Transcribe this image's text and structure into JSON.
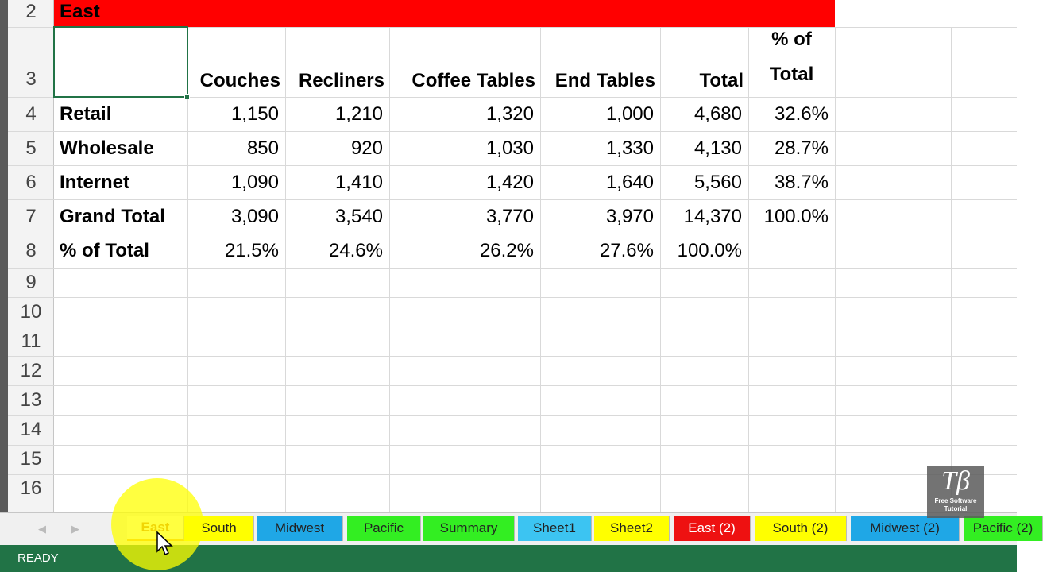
{
  "sheet": {
    "title_row": {
      "row": "2",
      "text": "East"
    },
    "header_row": {
      "row": "3",
      "cells": [
        "Couches",
        "Recliners",
        "Coffee Tables",
        "End Tables",
        "Total",
        "% of Total"
      ]
    },
    "rows": [
      {
        "row": "4",
        "cells": [
          "Retail",
          "1,150",
          "1,210",
          "1,320",
          "1,000",
          "4,680",
          "32.6%"
        ]
      },
      {
        "row": "5",
        "cells": [
          "Wholesale",
          "850",
          "920",
          "1,030",
          "1,330",
          "4,130",
          "28.7%"
        ]
      },
      {
        "row": "6",
        "cells": [
          "Internet",
          "1,090",
          "1,410",
          "1,420",
          "1,640",
          "5,560",
          "38.7%"
        ]
      },
      {
        "row": "7",
        "cells": [
          "Grand Total",
          "3,090",
          "3,540",
          "3,770",
          "3,970",
          "14,370",
          "100.0%"
        ]
      },
      {
        "row": "8",
        "cells": [
          "% of Total",
          "21.5%",
          "24.6%",
          "26.2%",
          "27.6%",
          "100.0%"
        ]
      }
    ],
    "empty_rows": [
      "9",
      "10",
      "11",
      "12",
      "13",
      "14",
      "15",
      "16"
    ]
  },
  "tabs": [
    {
      "name": "East",
      "color": "#ffffff"
    },
    {
      "name": "South",
      "color": "#ffff00"
    },
    {
      "name": "Midwest",
      "color": "#1fa7e6"
    },
    {
      "name": "Pacific",
      "color": "#33ee22"
    },
    {
      "name": "Summary",
      "color": "#33ee22"
    },
    {
      "name": "Sheet1",
      "color": "#3cc4f2"
    },
    {
      "name": "Sheet2",
      "color": "#ffff00"
    },
    {
      "name": "East (2)",
      "color": "#ee1111"
    },
    {
      "name": "South (2)",
      "color": "#ffff00"
    },
    {
      "name": "Midwest (2)",
      "color": "#1fa7e6"
    },
    {
      "name": "Pacific (2)",
      "color": "#33ee22"
    }
  ],
  "status": "READY",
  "logo": {
    "mark": "Tβ",
    "caption": "Free Software Tutorial"
  }
}
